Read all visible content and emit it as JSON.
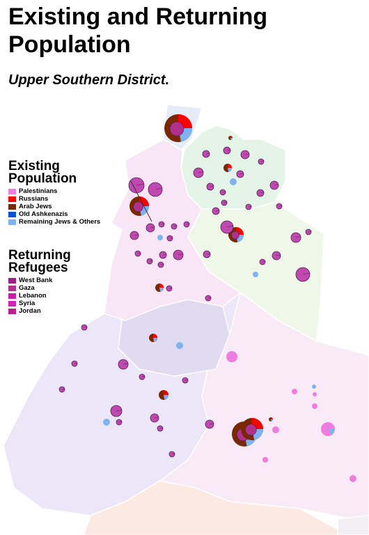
{
  "header": {
    "title": "Existing and Returning Population",
    "subtitle": "Upper Southern District."
  },
  "legends": [
    {
      "title": "Existing Population",
      "items": [
        {
          "label": "Palestinians",
          "color": "#f07ce0"
        },
        {
          "label": "Russians",
          "color": "#ff0000"
        },
        {
          "label": "Arab Jews",
          "color": "#7a2800"
        },
        {
          "label": "Old Ashkenazis",
          "color": "#0a50d8"
        },
        {
          "label": "Remaining Jews & Others",
          "color": "#7fb2f0"
        }
      ]
    },
    {
      "title": "Returning Refugees",
      "items": [
        {
          "label": "West Bank",
          "color": "#a01e88"
        },
        {
          "label": "Gaza",
          "color": "#b0308e"
        },
        {
          "label": "Lebanon",
          "color": "#c81ea8"
        },
        {
          "label": "Syria",
          "color": "#d820b8"
        },
        {
          "label": "Jordan",
          "color": "#c01c90"
        }
      ]
    }
  ]
}
